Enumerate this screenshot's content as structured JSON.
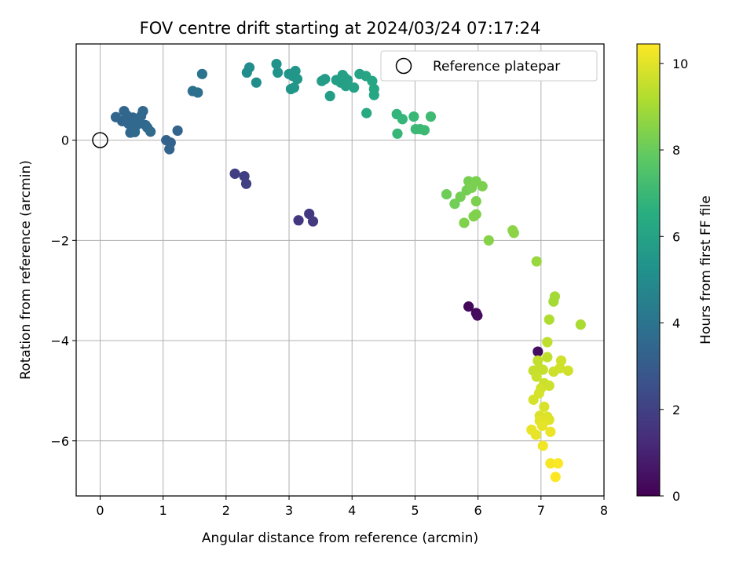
{
  "chart_data": {
    "type": "scatter",
    "title": "FOV centre drift starting at 2024/03/24 07:17:24",
    "xlabel": "Angular distance from reference (arcmin)",
    "ylabel": "Rotation from reference (arcmin)",
    "xlim": [
      -0.38,
      8.0
    ],
    "ylim": [
      -7.1,
      1.92
    ],
    "xticks": [
      "0",
      "1",
      "2",
      "3",
      "4",
      "5",
      "6",
      "7",
      "8"
    ],
    "yticks": [
      "0",
      "−2",
      "−4",
      "−6"
    ],
    "grid": true,
    "legend": {
      "label": "Reference platepar",
      "placement": "top-right"
    },
    "reference_point": {
      "x": 0,
      "y": 0
    },
    "colorbar": {
      "label": "Hours from first FF file",
      "range": [
        0,
        10.45
      ],
      "ticks": [
        "0",
        "2",
        "4",
        "6",
        "8",
        "10"
      ],
      "colormap": "viridis"
    },
    "points": [
      [
        5.85,
        -3.32,
        0.2
      ],
      [
        5.97,
        -3.45,
        0.25
      ],
      [
        5.99,
        -3.5,
        0.3
      ],
      [
        6.95,
        -4.22,
        0.35
      ],
      [
        3.15,
        -1.6,
        1.7
      ],
      [
        3.32,
        -1.47,
        1.72
      ],
      [
        3.38,
        -1.62,
        1.75
      ],
      [
        2.14,
        -0.67,
        1.9
      ],
      [
        2.29,
        -0.72,
        1.95
      ],
      [
        2.32,
        -0.87,
        2.0
      ],
      [
        1.05,
        0.0,
        3.3
      ],
      [
        1.12,
        -0.05,
        3.3
      ],
      [
        1.1,
        -0.18,
        3.35
      ],
      [
        1.23,
        0.19,
        3.35
      ],
      [
        0.25,
        0.46,
        3.4
      ],
      [
        0.35,
        0.38,
        3.4
      ],
      [
        0.38,
        0.58,
        3.42
      ],
      [
        0.42,
        0.5,
        3.45
      ],
      [
        0.45,
        0.33,
        3.45
      ],
      [
        0.48,
        0.15,
        3.45
      ],
      [
        0.52,
        0.45,
        3.48
      ],
      [
        0.55,
        0.35,
        3.5
      ],
      [
        0.58,
        0.3,
        3.5
      ],
      [
        0.62,
        0.4,
        3.52
      ],
      [
        0.65,
        0.48,
        3.55
      ],
      [
        0.68,
        0.58,
        3.55
      ],
      [
        0.72,
        0.3,
        3.55
      ],
      [
        0.75,
        0.25,
        3.58
      ],
      [
        0.8,
        0.17,
        3.6
      ],
      [
        0.55,
        0.16,
        3.6
      ],
      [
        1.47,
        0.98,
        3.8
      ],
      [
        1.55,
        0.95,
        3.85
      ],
      [
        1.62,
        1.32,
        3.95
      ],
      [
        2.33,
        1.35,
        5.0
      ],
      [
        2.37,
        1.45,
        5.05
      ],
      [
        2.48,
        1.15,
        5.1
      ],
      [
        2.8,
        1.52,
        5.3
      ],
      [
        2.82,
        1.35,
        5.3
      ],
      [
        3.0,
        1.32,
        5.4
      ],
      [
        3.03,
        1.02,
        5.4
      ],
      [
        3.06,
        1.28,
        5.45
      ],
      [
        3.1,
        1.38,
        5.5
      ],
      [
        3.13,
        1.22,
        5.5
      ],
      [
        3.08,
        1.05,
        5.5
      ],
      [
        3.52,
        1.18,
        5.7
      ],
      [
        3.57,
        1.22,
        5.7
      ],
      [
        3.65,
        0.88,
        5.75
      ],
      [
        3.75,
        1.2,
        5.8
      ],
      [
        3.82,
        1.15,
        5.85
      ],
      [
        3.85,
        1.3,
        5.85
      ],
      [
        3.88,
        1.25,
        5.9
      ],
      [
        3.9,
        1.08,
        5.9
      ],
      [
        3.93,
        1.2,
        5.9
      ],
      [
        4.03,
        1.05,
        6.0
      ],
      [
        4.12,
        1.32,
        6.05
      ],
      [
        4.22,
        1.28,
        6.1
      ],
      [
        4.32,
        1.18,
        6.15
      ],
      [
        4.35,
        1.02,
        6.2
      ],
      [
        4.35,
        0.9,
        6.2
      ],
      [
        4.23,
        0.54,
        6.3
      ],
      [
        4.71,
        0.52,
        6.8
      ],
      [
        4.8,
        0.42,
        6.85
      ],
      [
        4.72,
        0.13,
        6.9
      ],
      [
        4.98,
        0.47,
        6.95
      ],
      [
        5.01,
        0.22,
        7.0
      ],
      [
        5.08,
        0.22,
        7.0
      ],
      [
        5.15,
        0.2,
        7.05
      ],
      [
        5.25,
        0.47,
        7.1
      ],
      [
        5.5,
        -1.08,
        8.1
      ],
      [
        5.63,
        -1.27,
        8.15
      ],
      [
        5.72,
        -1.13,
        8.2
      ],
      [
        5.82,
        -1.0,
        8.2
      ],
      [
        5.85,
        -0.82,
        8.25
      ],
      [
        5.9,
        -0.95,
        8.3
      ],
      [
        5.97,
        -0.82,
        8.3
      ],
      [
        6.07,
        -0.92,
        8.35
      ],
      [
        5.97,
        -1.22,
        8.35
      ],
      [
        5.93,
        -1.52,
        8.4
      ],
      [
        5.97,
        -1.48,
        8.4
      ],
      [
        5.78,
        -1.65,
        8.4
      ],
      [
        6.17,
        -2.0,
        8.5
      ],
      [
        6.55,
        -1.8,
        8.6
      ],
      [
        6.57,
        -1.85,
        8.6
      ],
      [
        6.93,
        -2.42,
        8.8
      ],
      [
        7.22,
        -3.12,
        9.0
      ],
      [
        7.2,
        -3.22,
        9.0
      ],
      [
        7.63,
        -3.68,
        9.1
      ],
      [
        7.13,
        -3.58,
        9.2
      ],
      [
        7.1,
        -4.03,
        9.4
      ],
      [
        7.1,
        -4.33,
        9.45
      ],
      [
        6.95,
        -4.4,
        9.5
      ],
      [
        6.97,
        -4.55,
        9.5
      ],
      [
        7.03,
        -4.58,
        9.55
      ],
      [
        6.88,
        -4.6,
        9.55
      ],
      [
        6.93,
        -4.72,
        9.6
      ],
      [
        7.05,
        -4.85,
        9.6
      ],
      [
        7.13,
        -4.9,
        9.65
      ],
      [
        7.2,
        -4.62,
        9.65
      ],
      [
        7.3,
        -4.55,
        9.7
      ],
      [
        7.32,
        -4.4,
        9.7
      ],
      [
        7.43,
        -4.6,
        9.7
      ],
      [
        7.0,
        -4.95,
        9.75
      ],
      [
        6.97,
        -5.05,
        9.8
      ],
      [
        6.88,
        -5.18,
        9.8
      ],
      [
        7.05,
        -5.32,
        9.85
      ],
      [
        6.98,
        -5.5,
        9.9
      ],
      [
        7.1,
        -5.52,
        9.9
      ],
      [
        7.13,
        -5.58,
        9.95
      ],
      [
        6.98,
        -5.6,
        10.0
      ],
      [
        7.05,
        -5.62,
        10.0
      ],
      [
        7.02,
        -5.7,
        10.05
      ],
      [
        6.85,
        -5.78,
        10.1
      ],
      [
        6.92,
        -5.88,
        10.1
      ],
      [
        7.15,
        -5.82,
        10.15
      ],
      [
        7.03,
        -6.1,
        10.25
      ],
      [
        7.15,
        -6.45,
        10.35
      ],
      [
        7.27,
        -6.45,
        10.4
      ],
      [
        7.23,
        -6.72,
        10.45
      ]
    ]
  }
}
